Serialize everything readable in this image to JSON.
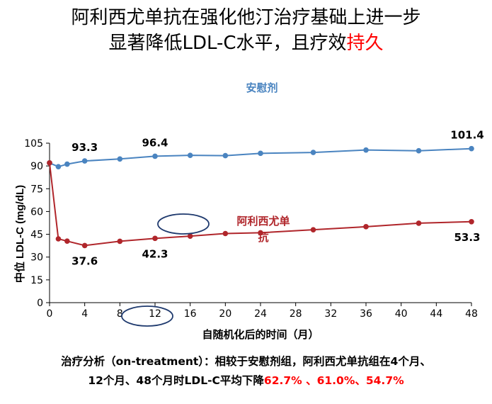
{
  "title": {
    "line1": "阿利西尤单抗在强化他汀治疗基础上进一步",
    "line2_main": "显著降低LDL-C水平，且疗效",
    "line2_highlight": "持久"
  },
  "colors": {
    "placebo": "#4a84c0",
    "alirocumab": "#b0262b",
    "highlight": "#ff0000",
    "ellipse": "#1f3a6e"
  },
  "chart_data": {
    "type": "line",
    "xlabel": "自随机化后的时间（月）",
    "ylabel": "中位 LDL-C (mg/dL)",
    "xlim": [
      0,
      48
    ],
    "ylim": [
      0,
      105
    ],
    "xticks": [
      0,
      4,
      8,
      12,
      16,
      20,
      24,
      28,
      32,
      36,
      40,
      44,
      48
    ],
    "yticks": [
      0,
      15,
      30,
      45,
      60,
      75,
      90,
      105
    ],
    "series": [
      {
        "name": "安慰剂",
        "color": "#4a84c0",
        "x": [
          0,
          1,
          2,
          4,
          8,
          12,
          16,
          20,
          24,
          30,
          36,
          42,
          48
        ],
        "y": [
          92.0,
          89.5,
          91.2,
          93.3,
          94.6,
          96.4,
          97.0,
          96.8,
          98.3,
          98.9,
          100.5,
          100.0,
          101.4
        ]
      },
      {
        "name": "阿利西尤单抗",
        "color": "#b0262b",
        "x": [
          0,
          1,
          2,
          4,
          8,
          12,
          16,
          20,
          24,
          30,
          36,
          42,
          48
        ],
        "y": [
          92.0,
          42.0,
          40.5,
          37.6,
          40.4,
          42.3,
          43.8,
          45.5,
          46.0,
          48.0,
          50.0,
          52.3,
          53.3
        ]
      }
    ],
    "data_labels": [
      {
        "series": 0,
        "x": 4,
        "y": 93.3,
        "text": "93.3"
      },
      {
        "series": 0,
        "x": 12,
        "y": 96.4,
        "text": "96.4"
      },
      {
        "series": 0,
        "x": 48,
        "y": 101.4,
        "text": "101.4"
      },
      {
        "series": 1,
        "x": 4,
        "y": 37.6,
        "text": "37.6"
      },
      {
        "series": 1,
        "x": 12,
        "y": 42.3,
        "text": "42.3"
      },
      {
        "series": 1,
        "x": 48,
        "y": 53.3,
        "text": "53.3"
      }
    ],
    "annotations": {
      "placebo_label": "安慰剂",
      "alirocumab_label_line1": "阿利西尤单",
      "alirocumab_label_line2": "抗"
    }
  },
  "footer": {
    "line1": "治疗分析（on-treatment）：相较于安慰剂组，阿利西尤单抗组在4个月、",
    "line2_main": "12个月、48个月时LDL-C平均下降",
    "line2_values": "62.7% 、61.0%、54.7%"
  }
}
